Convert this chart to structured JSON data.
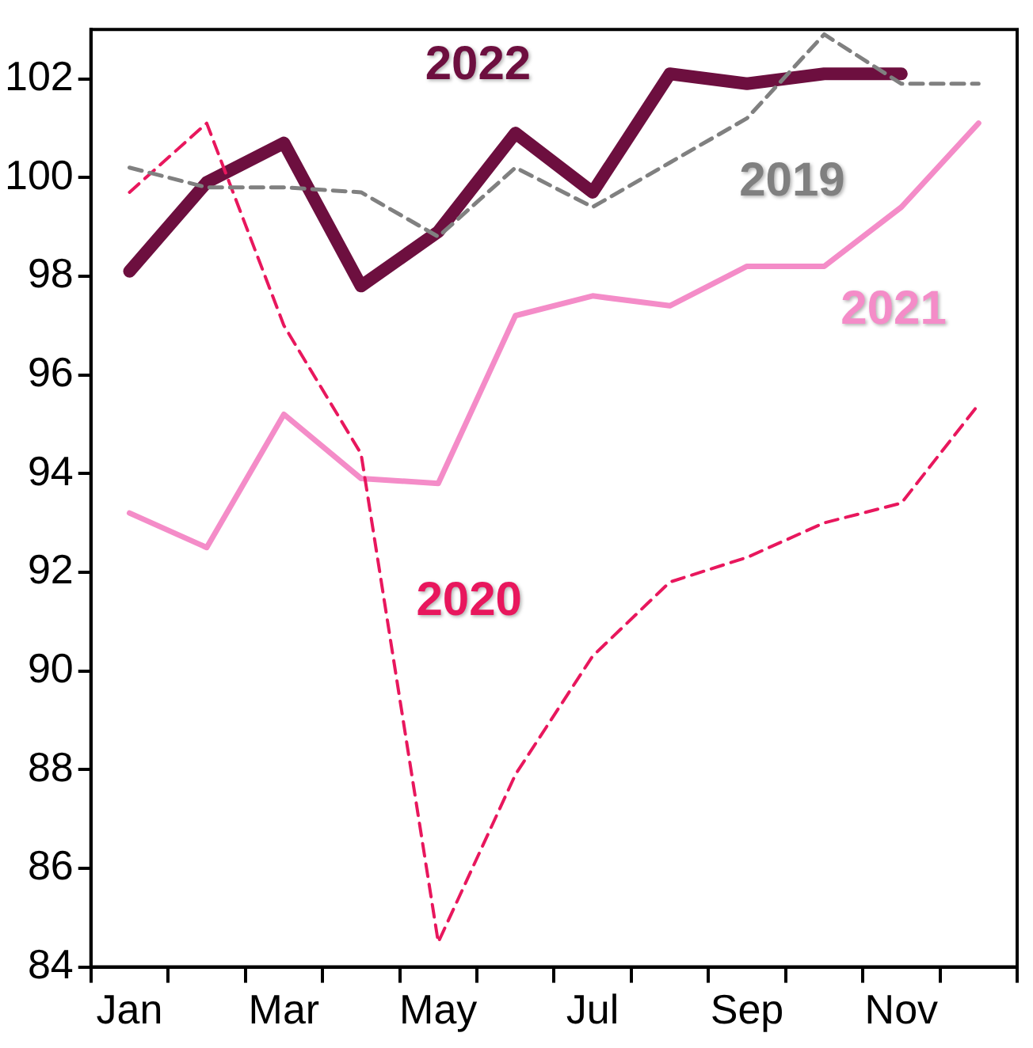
{
  "chart_data": {
    "type": "line",
    "categories": [
      "Jan",
      null,
      "Mar",
      null,
      "May",
      null,
      "Jul",
      null,
      "Sep",
      null,
      "Nov",
      null
    ],
    "ylim": [
      84,
      103
    ],
    "yticks": [
      84,
      86,
      88,
      90,
      92,
      94,
      96,
      98,
      100,
      102
    ],
    "grid": false,
    "legend": false,
    "marker": "none",
    "series": [
      {
        "name": "2019",
        "color": "#808080",
        "line_style": "dashed",
        "values": [
          100.2,
          99.8,
          99.8,
          99.7,
          98.8,
          100.2,
          99.4,
          100.3,
          101.2,
          102.9,
          101.9,
          101.9
        ]
      },
      {
        "name": "2020",
        "color": "#e8175d",
        "line_style": "dashed",
        "values": [
          99.7,
          101.1,
          97.0,
          94.4,
          84.5,
          87.9,
          90.3,
          91.8,
          92.3,
          93.0,
          93.4,
          95.4
        ]
      },
      {
        "name": "2021",
        "color": "#f48cc8",
        "line_style": "solid",
        "values": [
          93.2,
          92.5,
          95.2,
          93.9,
          93.8,
          97.2,
          97.6,
          97.4,
          98.2,
          98.2,
          99.4,
          101.1
        ]
      },
      {
        "name": "2022",
        "color": "#6d0f3f",
        "line_style": "solid",
        "values": [
          98.1,
          99.9,
          100.7,
          97.8,
          98.9,
          100.9,
          99.7,
          102.1,
          101.9,
          102.1,
          102.1,
          null
        ]
      }
    ]
  }
}
